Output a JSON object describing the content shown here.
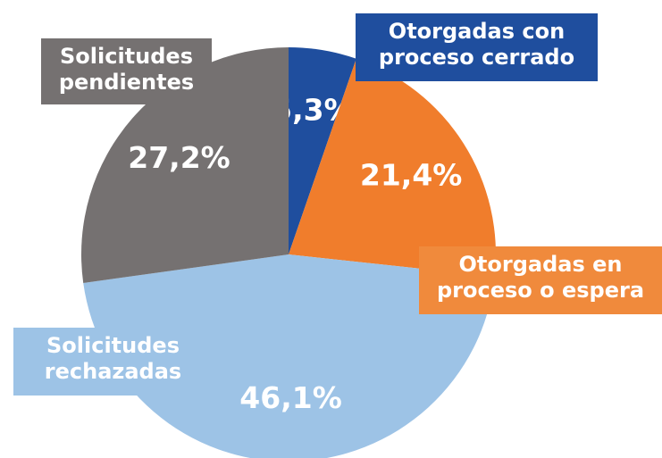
{
  "chart_data": {
    "type": "pie",
    "categories": [
      "Otorgadas con proceso cerrado",
      "Otorgadas en proceso o espera",
      "Solicitudes rechazadas",
      "Solicitudes pendientes"
    ],
    "values": [
      5.3,
      21.4,
      46.1,
      27.2
    ],
    "value_labels": [
      "5,3%",
      "21,4%",
      "46,1%",
      "27,2%"
    ],
    "colors": [
      "#1f4e9e",
      "#f07d2c",
      "#9dc3e6",
      "#757171"
    ]
  }
}
